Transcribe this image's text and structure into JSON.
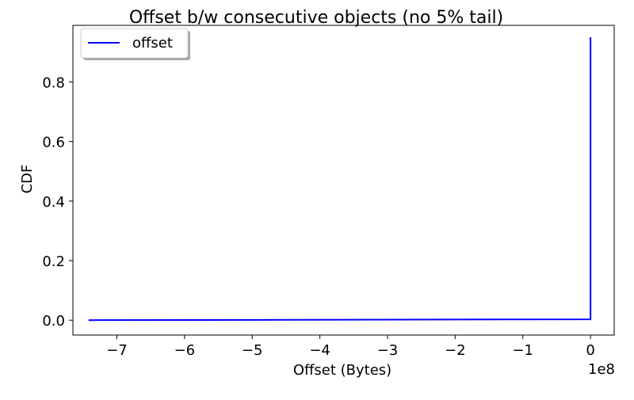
{
  "chart_data": {
    "type": "line",
    "title": "Offset b/w consecutive objects (no 5% tail)",
    "xlabel": "Offset (Bytes)",
    "ylabel": "CDF",
    "x_scale_label": "1e8",
    "xlim": [
      -7.65,
      0.35
    ],
    "ylim": [
      -0.05,
      0.99
    ],
    "x_ticks": [
      -7,
      -6,
      -5,
      -4,
      -3,
      -2,
      -1,
      0
    ],
    "x_tick_labels": [
      "−7",
      "−6",
      "−5",
      "−4",
      "−3",
      "−2",
      "−1",
      "0"
    ],
    "y_ticks": [
      0.0,
      0.2,
      0.4,
      0.6,
      0.8
    ],
    "y_tick_labels": [
      "0.0",
      "0.2",
      "0.4",
      "0.6",
      "0.8"
    ],
    "grid": false,
    "legend": {
      "position": "top-left",
      "entries": [
        "offset"
      ]
    },
    "series": [
      {
        "name": "offset",
        "color": "#0000ff",
        "x": [
          -7.42,
          -0.001,
          0,
          0
        ],
        "y": [
          0.0,
          0.003,
          0.003,
          0.95
        ]
      }
    ]
  }
}
